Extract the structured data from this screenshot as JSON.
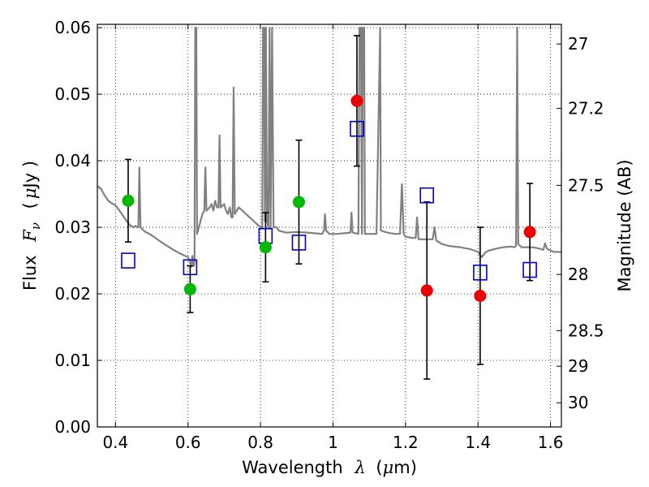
{
  "chart_data": {
    "type": "scatter",
    "xlabel_prefix": "Wavelength",
    "xlabel_symbol": "λ",
    "xlabel_units_open": "(",
    "xlabel_units_mu": "μ",
    "xlabel_units_rest": "m)",
    "ylabel_prefix": "Flux",
    "ylabel_symbol": "F",
    "ylabel_subscript": "ν",
    "ylabel_units_open": "(",
    "ylabel_units_mu": "μ",
    "ylabel_units_rest": "Jy )",
    "y2label": "Magnitude (AB)",
    "xlim": [
      0.35,
      1.63
    ],
    "ylim": [
      0.0,
      0.0605
    ],
    "x_ticks": [
      0.4,
      0.6,
      0.8,
      1.0,
      1.2,
      1.4,
      1.6
    ],
    "x_tick_labels": [
      "0.4",
      "0.6",
      "0.8",
      "1",
      "1.2",
      "1.4",
      "1.6"
    ],
    "y_ticks": [
      0.0,
      0.01,
      0.02,
      0.03,
      0.04,
      0.05,
      0.06
    ],
    "y_tick_labels": [
      "0.00",
      "0.01",
      "0.02",
      "0.03",
      "0.04",
      "0.05",
      "0.06"
    ],
    "y2_ticks": [
      27,
      27.2,
      27.5,
      28,
      28.5,
      29,
      30
    ],
    "y2_tick_labels": [
      "27",
      "27.2",
      "27.5",
      "28",
      "28.5",
      "29",
      "30"
    ],
    "grid": true,
    "colors": {
      "model_line": "#808080",
      "green": "#00b800",
      "red": "#ee0000",
      "blue_square": "#0000cc",
      "errorbar": "#000000"
    },
    "series": [
      {
        "name": "green points",
        "marker": "circle",
        "color": "#00b800",
        "points": [
          {
            "x": 0.435,
            "y": 0.034,
            "err_low": 0.0062,
            "err_high": 0.0062
          },
          {
            "x": 0.606,
            "y": 0.0207,
            "err_low": 0.0035,
            "err_high": 0.0035
          },
          {
            "x": 0.814,
            "y": 0.027,
            "err_low": 0.0052,
            "err_high": 0.0052
          },
          {
            "x": 0.906,
            "y": 0.0338,
            "err_low": 0.0093,
            "err_high": 0.0093
          }
        ]
      },
      {
        "name": "red points",
        "marker": "circle",
        "color": "#ee0000",
        "points": [
          {
            "x": 1.066,
            "y": 0.049,
            "err_low": 0.0098,
            "err_high": 0.0098
          },
          {
            "x": 1.259,
            "y": 0.0205,
            "err_low": 0.0133,
            "err_high": 0.0133
          },
          {
            "x": 1.406,
            "y": 0.0197,
            "err_low": 0.0103,
            "err_high": 0.0103
          },
          {
            "x": 1.543,
            "y": 0.0293,
            "err_low": 0.0073,
            "err_high": 0.0073
          }
        ]
      },
      {
        "name": "model photometry",
        "marker": "open-square",
        "color": "#0000cc",
        "points": [
          {
            "x": 0.435,
            "y": 0.025
          },
          {
            "x": 0.606,
            "y": 0.024
          },
          {
            "x": 0.814,
            "y": 0.0287
          },
          {
            "x": 0.906,
            "y": 0.0277
          },
          {
            "x": 1.066,
            "y": 0.0448
          },
          {
            "x": 1.259,
            "y": 0.0348
          },
          {
            "x": 1.406,
            "y": 0.0232
          },
          {
            "x": 1.543,
            "y": 0.0236
          }
        ]
      }
    ],
    "model_spectrum": {
      "name": "model SED",
      "color": "#808080",
      "points": [
        [
          0.35,
          0.0362
        ],
        [
          0.36,
          0.0358
        ],
        [
          0.37,
          0.0348
        ],
        [
          0.38,
          0.034
        ],
        [
          0.39,
          0.0336
        ],
        [
          0.4,
          0.0333
        ],
        [
          0.41,
          0.0326
        ],
        [
          0.42,
          0.0318
        ],
        [
          0.43,
          0.031
        ],
        [
          0.44,
          0.0303
        ],
        [
          0.45,
          0.03
        ],
        [
          0.455,
          0.0302
        ],
        [
          0.46,
          0.03
        ],
        [
          0.463,
          0.03
        ],
        [
          0.466,
          0.039
        ],
        [
          0.469,
          0.03
        ],
        [
          0.48,
          0.0294
        ],
        [
          0.5,
          0.0288
        ],
        [
          0.52,
          0.028
        ],
        [
          0.54,
          0.0273
        ],
        [
          0.56,
          0.0266
        ],
        [
          0.58,
          0.026
        ],
        [
          0.6,
          0.0255
        ],
        [
          0.605,
          0.025
        ],
        [
          0.608,
          0.024
        ],
        [
          0.61,
          0.0245
        ],
        [
          0.612,
          0.0257
        ],
        [
          0.614,
          0.0247
        ],
        [
          0.616,
          0.0242
        ],
        [
          0.618,
          0.0248
        ],
        [
          0.62,
          0.06
        ],
        [
          0.623,
          0.06
        ],
        [
          0.625,
          0.029
        ],
        [
          0.63,
          0.03
        ],
        [
          0.64,
          0.032
        ],
        [
          0.645,
          0.0325
        ],
        [
          0.648,
          0.039
        ],
        [
          0.651,
          0.0325
        ],
        [
          0.66,
          0.033
        ],
        [
          0.665,
          0.0335
        ],
        [
          0.67,
          0.0325
        ],
        [
          0.675,
          0.034
        ],
        [
          0.68,
          0.033
        ],
        [
          0.684,
          0.033
        ],
        [
          0.687,
          0.0438
        ],
        [
          0.69,
          0.033
        ],
        [
          0.7,
          0.0335
        ],
        [
          0.705,
          0.0325
        ],
        [
          0.71,
          0.032
        ],
        [
          0.715,
          0.033
        ],
        [
          0.72,
          0.0315
        ],
        [
          0.723,
          0.0315
        ],
        [
          0.726,
          0.051
        ],
        [
          0.729,
          0.032
        ],
        [
          0.74,
          0.033
        ],
        [
          0.75,
          0.0325
        ],
        [
          0.76,
          0.032
        ],
        [
          0.77,
          0.0315
        ],
        [
          0.78,
          0.031
        ],
        [
          0.79,
          0.0305
        ],
        [
          0.8,
          0.03
        ],
        [
          0.805,
          0.03
        ],
        [
          0.807,
          0.06
        ],
        [
          0.81,
          0.06
        ],
        [
          0.812,
          0.031
        ],
        [
          0.815,
          0.06
        ],
        [
          0.818,
          0.031
        ],
        [
          0.822,
          0.03
        ],
        [
          0.825,
          0.06
        ],
        [
          0.828,
          0.03
        ],
        [
          0.832,
          0.06
        ],
        [
          0.836,
          0.03
        ],
        [
          0.84,
          0.03
        ],
        [
          0.845,
          0.03
        ],
        [
          0.85,
          0.0295
        ],
        [
          0.87,
          0.0292
        ],
        [
          0.9,
          0.0293
        ],
        [
          0.93,
          0.0292
        ],
        [
          0.95,
          0.0291
        ],
        [
          0.97,
          0.029
        ],
        [
          0.975,
          0.0295
        ],
        [
          0.978,
          0.032
        ],
        [
          0.981,
          0.0295
        ],
        [
          0.99,
          0.029
        ],
        [
          1.0,
          0.029
        ],
        [
          1.01,
          0.029
        ],
        [
          1.03,
          0.0291
        ],
        [
          1.048,
          0.0292
        ],
        [
          1.051,
          0.0322
        ],
        [
          1.054,
          0.0292
        ],
        [
          1.07,
          0.029
        ],
        [
          1.073,
          0.06
        ],
        [
          1.077,
          0.06
        ],
        [
          1.08,
          0.029
        ],
        [
          1.082,
          0.06
        ],
        [
          1.086,
          0.06
        ],
        [
          1.088,
          0.029
        ],
        [
          1.1,
          0.029
        ],
        [
          1.12,
          0.029
        ],
        [
          1.13,
          0.06
        ],
        [
          1.132,
          0.0295
        ],
        [
          1.15,
          0.0292
        ],
        [
          1.17,
          0.029
        ],
        [
          1.185,
          0.029
        ],
        [
          1.19,
          0.0365
        ],
        [
          1.195,
          0.029
        ],
        [
          1.2,
          0.0286
        ],
        [
          1.22,
          0.0284
        ],
        [
          1.228,
          0.0284
        ],
        [
          1.232,
          0.0315
        ],
        [
          1.236,
          0.0282
        ],
        [
          1.26,
          0.0282
        ],
        [
          1.275,
          0.0282
        ],
        [
          1.28,
          0.03
        ],
        [
          1.285,
          0.028
        ],
        [
          1.3,
          0.0275
        ],
        [
          1.32,
          0.0272
        ],
        [
          1.35,
          0.027
        ],
        [
          1.38,
          0.0267
        ],
        [
          1.4,
          0.0263
        ],
        [
          1.41,
          0.0255
        ],
        [
          1.42,
          0.0262
        ],
        [
          1.43,
          0.0265
        ],
        [
          1.45,
          0.0268
        ],
        [
          1.47,
          0.027
        ],
        [
          1.49,
          0.0271
        ],
        [
          1.5,
          0.027
        ],
        [
          1.505,
          0.0272
        ],
        [
          1.508,
          0.06
        ],
        [
          1.511,
          0.0275
        ],
        [
          1.52,
          0.027
        ],
        [
          1.53,
          0.027
        ],
        [
          1.55,
          0.027
        ],
        [
          1.57,
          0.0268
        ],
        [
          1.58,
          0.0266
        ],
        [
          1.585,
          0.0276
        ],
        [
          1.59,
          0.0268
        ],
        [
          1.6,
          0.0265
        ],
        [
          1.61,
          0.0263
        ],
        [
          1.63,
          0.0263
        ]
      ]
    }
  }
}
